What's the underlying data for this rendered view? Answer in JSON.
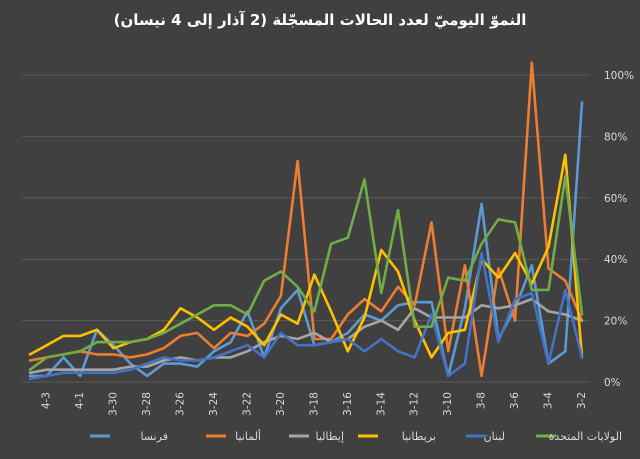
{
  "chart_data": {
    "type": "line",
    "title": "النموّ اليوميّ لعدد الحالات المسجّلة (2 آذار إلى 4 نيسان)",
    "xlabel": "",
    "ylabel": "",
    "x_direction": "right-to-left",
    "ylim": [
      0,
      1.0
    ],
    "y_ticks": [
      0,
      0.2,
      0.4,
      0.6,
      0.8,
      1.0
    ],
    "y_tick_labels": [
      "0%",
      "20%",
      "40%",
      "60%",
      "80%",
      "100%"
    ],
    "x_labels": [
      "3-2",
      "3-3",
      "3-4",
      "3-5",
      "3-6",
      "3-7",
      "3-8",
      "3-9",
      "3-10",
      "3-11",
      "3-12",
      "3-13",
      "3-14",
      "3-15",
      "3-16",
      "3-17",
      "3-18",
      "3-19",
      "3-20",
      "3-21",
      "3-22",
      "3-23",
      "3-24",
      "3-25",
      "3-26",
      "3-27",
      "3-28",
      "3-29",
      "3-30",
      "3-31",
      "4-1",
      "4-2",
      "4-3",
      "4-4"
    ],
    "x_tick_labels": [
      "3-2",
      "3-4",
      "3-6",
      "3-8",
      "3-10",
      "3-12",
      "3-14",
      "3-16",
      "3-18",
      "3-20",
      "3-22",
      "3-24",
      "3-26",
      "3-28",
      "3-30",
      "4-1",
      "4-3"
    ],
    "grid": true,
    "legend_position": "bottom",
    "series": [
      {
        "name": "فرنسا",
        "color": "#5b9bd5",
        "values": [
          0.91,
          0.1,
          0.06,
          0.38,
          0.24,
          0.14,
          0.58,
          0.24,
          0.02,
          0.26,
          0.26,
          0.25,
          0.2,
          0.22,
          0.16,
          0.13,
          0.12,
          0.3,
          0.24,
          0.08,
          0.23,
          0.13,
          0.1,
          0.05,
          0.06,
          0.06,
          0.02,
          0.06,
          0.12,
          0.17,
          0.02,
          0.08,
          0.02,
          0.02
        ]
      },
      {
        "name": "ألمانيا",
        "color": "#ed7d31",
        "values": [
          0.2,
          0.33,
          0.37,
          1.04,
          0.2,
          0.37,
          0.02,
          0.38,
          0.1,
          0.52,
          0.25,
          0.31,
          0.23,
          0.27,
          0.22,
          0.14,
          0.14,
          0.72,
          0.28,
          0.19,
          0.15,
          0.16,
          0.11,
          0.16,
          0.15,
          0.11,
          0.09,
          0.08,
          0.09,
          0.09,
          0.1,
          0.09,
          0.08,
          0.07
        ]
      },
      {
        "name": "إيطاليا",
        "color": "#a5a5a5",
        "values": [
          0.2,
          0.22,
          0.23,
          0.27,
          0.25,
          0.24,
          0.25,
          0.21,
          0.21,
          0.21,
          0.24,
          0.17,
          0.2,
          0.18,
          0.14,
          0.13,
          0.16,
          0.14,
          0.15,
          0.13,
          0.1,
          0.08,
          0.08,
          0.07,
          0.08,
          0.07,
          0.05,
          0.05,
          0.04,
          0.04,
          0.04,
          0.04,
          0.04,
          0.03
        ]
      },
      {
        "name": "بريطانيا",
        "color": "#ffc000",
        "values": [
          0.08,
          0.74,
          0.44,
          0.32,
          0.42,
          0.34,
          0.4,
          0.17,
          0.16,
          0.08,
          0.2,
          0.36,
          0.43,
          0.21,
          0.1,
          0.23,
          0.35,
          0.19,
          0.22,
          0.12,
          0.18,
          0.21,
          0.17,
          0.21,
          0.24,
          0.17,
          0.14,
          0.13,
          0.11,
          0.17,
          0.15,
          0.15,
          0.12,
          0.09
        ]
      },
      {
        "name": "لبنان",
        "color": "#4472c4",
        "values": [
          0.08,
          0.3,
          0.06,
          0.29,
          0.27,
          0.13,
          0.42,
          0.06,
          0.02,
          0.22,
          0.08,
          0.1,
          0.14,
          0.1,
          0.14,
          0.13,
          0.12,
          0.12,
          0.16,
          0.08,
          0.12,
          0.1,
          0.08,
          0.07,
          0.07,
          0.08,
          0.06,
          0.04,
          0.03,
          0.03,
          0.03,
          0.03,
          0.02,
          0.01
        ]
      },
      {
        "name": "الولايات المتحدة",
        "color": "#70ad47",
        "values": [
          0.22,
          0.67,
          0.3,
          0.3,
          0.52,
          0.53,
          0.45,
          0.33,
          0.34,
          0.18,
          0.18,
          0.56,
          0.29,
          0.66,
          0.47,
          0.45,
          0.23,
          0.31,
          0.36,
          0.33,
          0.22,
          0.25,
          0.25,
          0.22,
          0.19,
          0.16,
          0.14,
          0.13,
          0.13,
          0.13,
          0.1,
          0.09,
          0.08,
          0.04
        ]
      }
    ]
  }
}
